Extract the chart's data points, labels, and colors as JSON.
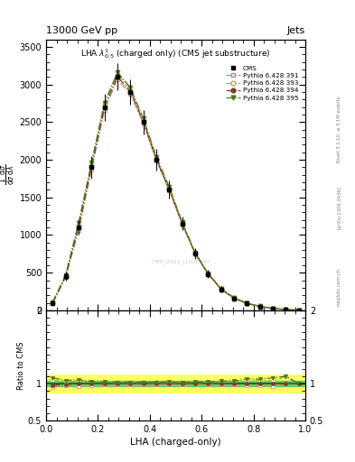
{
  "title_top": "13000 GeV pp",
  "title_right": "Jets",
  "plot_title": "LHA $\\lambda^{1}_{0.5}$ (charged only) (CMS jet substructure)",
  "xlabel": "LHA (charged-only)",
  "ylabel": "$\\frac{1}{\\mathrm{d}\\sigma}\\frac{\\mathrm{d}\\sigma}{\\mathrm{d}\\lambda}$",
  "ylabel_ratio": "Ratio to CMS",
  "watermark": "CMS_2021_I1920187",
  "rivet_text": "Rivet 3.1.10, ≥ 3.1M events",
  "arxiv_text": "[arXiv:1306.3436]",
  "mcplots_text": "mcplots.cern.ch",
  "lha_bins": [
    0.0,
    0.05,
    0.1,
    0.15,
    0.2,
    0.25,
    0.3,
    0.35,
    0.4,
    0.45,
    0.5,
    0.55,
    0.6,
    0.65,
    0.7,
    0.75,
    0.8,
    0.85,
    0.9,
    0.95,
    1.0
  ],
  "cms_values": [
    100,
    450,
    1100,
    1900,
    2700,
    3100,
    2900,
    2500,
    2000,
    1600,
    1150,
    750,
    480,
    280,
    160,
    90,
    50,
    25,
    10,
    3
  ],
  "cms_errors": [
    20,
    60,
    100,
    150,
    180,
    180,
    170,
    160,
    140,
    120,
    90,
    70,
    55,
    40,
    28,
    18,
    12,
    8,
    5,
    2
  ],
  "py391_values": [
    95,
    440,
    1060,
    1870,
    2660,
    3070,
    2870,
    2480,
    1990,
    1590,
    1140,
    748,
    478,
    278,
    158,
    88,
    49,
    24,
    10,
    3
  ],
  "py393_values": [
    105,
    460,
    1140,
    1940,
    2740,
    3140,
    2940,
    2530,
    2020,
    1620,
    1160,
    762,
    488,
    285,
    163,
    93,
    52,
    26,
    11,
    3
  ],
  "py394_values": [
    98,
    445,
    1100,
    1900,
    2700,
    3105,
    2905,
    2505,
    2005,
    1605,
    1150,
    753,
    482,
    280,
    160,
    90,
    50,
    25,
    10,
    3
  ],
  "py395_values": [
    108,
    470,
    1160,
    1960,
    2760,
    3160,
    2960,
    2550,
    2040,
    1640,
    1170,
    768,
    492,
    290,
    166,
    96,
    53,
    27,
    11,
    3
  ],
  "color_391": "#cc8080",
  "color_393": "#aaaa44",
  "color_394": "#7a4020",
  "color_395": "#4a7820",
  "cms_color": "#000000",
  "ratio_green_band": 0.04,
  "ratio_yellow_band": 0.12,
  "ylim_main": [
    0,
    3600
  ],
  "ylim_ratio": [
    0.5,
    2.0
  ],
  "yticks_main": [
    0,
    500,
    1000,
    1500,
    2000,
    2500,
    3000,
    3500
  ],
  "yticks_ratio": [
    0.5,
    1.0,
    2.0
  ],
  "background_color": "#ffffff"
}
